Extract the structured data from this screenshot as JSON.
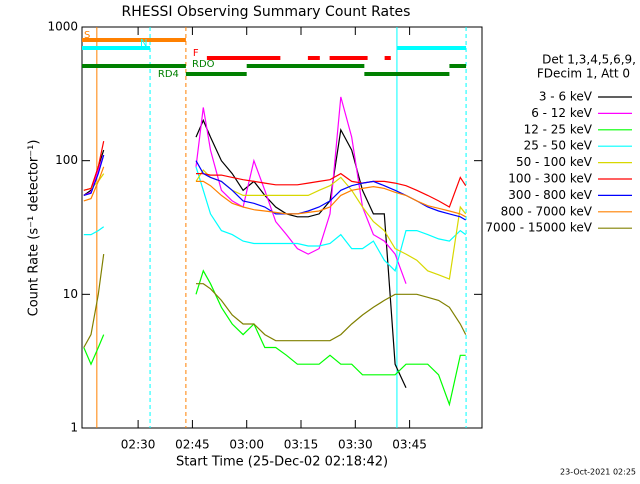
{
  "chart_data": {
    "type": "line",
    "title": "RHESSI Observing Summary Count Rates",
    "xlabel": "Start Time (25-Dec-02 02:18:42)",
    "ylabel": "Count Rate (s⁻¹ detector⁻¹)",
    "legend_header": [
      "Det 1,3,4,5,6,9,",
      "FDecim 1, Att 0"
    ],
    "footer": "23-Oct-2021 02:25",
    "ylog": true,
    "ylim": [
      1,
      1000
    ],
    "yticks": [
      1,
      10,
      100,
      1000
    ],
    "xlim": [
      14.5,
      125
    ],
    "xticks": [
      {
        "value": 30,
        "label": "02:30"
      },
      {
        "value": 45,
        "label": "02:45"
      },
      {
        "value": 60,
        "label": "03:00"
      },
      {
        "value": 75,
        "label": "03:15"
      },
      {
        "value": 90,
        "label": "03:30"
      },
      {
        "value": 105,
        "label": "03:45"
      }
    ],
    "x": [
      15,
      17,
      19,
      20.5,
      33,
      46,
      48,
      50,
      53,
      56,
      59,
      62,
      65,
      68,
      71,
      74,
      77,
      80,
      83,
      86,
      89,
      92,
      95,
      98,
      101,
      104,
      107,
      110,
      113,
      116,
      119,
      120.5
    ],
    "series": [
      {
        "name": "3 - 6 keV",
        "color": "#000000",
        "values": [
          55,
          60,
          90,
          120,
          null,
          150,
          200,
          150,
          100,
          80,
          60,
          70,
          55,
          45,
          40,
          38,
          38,
          40,
          50,
          170,
          120,
          60,
          40,
          40,
          3,
          2,
          null,
          null,
          null,
          null,
          null,
          null
        ]
      },
      {
        "name": "6 - 12 keV",
        "color": "#ff00ff",
        "values": [
          55,
          58,
          85,
          110,
          null,
          90,
          250,
          120,
          60,
          50,
          45,
          100,
          60,
          35,
          28,
          22,
          20,
          22,
          40,
          300,
          150,
          45,
          28,
          25,
          20,
          12,
          null,
          null,
          null,
          null,
          null,
          null
        ]
      },
      {
        "name": "12 - 25 keV",
        "color": "#00ff00",
        "values": [
          4,
          3,
          4,
          5,
          null,
          10,
          15,
          12,
          8,
          6,
          5,
          6,
          4,
          4,
          3.5,
          3,
          3,
          3,
          3.5,
          3,
          3,
          2.5,
          2.5,
          2.5,
          2.5,
          3,
          3,
          3,
          2.5,
          1.5,
          3.5,
          3.5
        ]
      },
      {
        "name": "25 - 50 keV",
        "color": "#00ffff",
        "values": [
          28,
          28,
          30,
          32,
          null,
          90,
          60,
          40,
          30,
          28,
          25,
          24,
          24,
          24,
          24,
          24,
          23,
          23,
          24,
          28,
          22,
          22,
          25,
          18,
          15,
          30,
          30,
          28,
          26,
          25,
          30,
          28
        ]
      },
      {
        "name": "50 - 100 keV",
        "color": "#d8d800",
        "values": [
          60,
          62,
          70,
          80,
          null,
          70,
          85,
          75,
          70,
          60,
          55,
          55,
          55,
          55,
          55,
          55,
          55,
          60,
          65,
          75,
          60,
          45,
          35,
          30,
          22,
          20,
          18,
          15,
          14,
          13,
          45,
          40
        ]
      },
      {
        "name": "100 - 300 keV",
        "color": "#ff0000",
        "values": [
          60,
          62,
          90,
          140,
          null,
          80,
          80,
          78,
          78,
          75,
          72,
          70,
          68,
          66,
          66,
          66,
          68,
          70,
          72,
          80,
          70,
          68,
          70,
          70,
          68,
          65,
          60,
          55,
          50,
          45,
          75,
          65
        ]
      },
      {
        "name": "300 - 800 keV",
        "color": "#0000ff",
        "values": [
          55,
          57,
          80,
          110,
          null,
          100,
          80,
          75,
          70,
          60,
          50,
          48,
          45,
          40,
          40,
          40,
          42,
          45,
          50,
          60,
          65,
          68,
          70,
          65,
          60,
          55,
          50,
          45,
          42,
          40,
          38,
          36
        ]
      },
      {
        "name": "800 - 7000 keV",
        "color": "#ff8000",
        "values": [
          50,
          52,
          70,
          90,
          null,
          70,
          70,
          65,
          55,
          48,
          45,
          43,
          42,
          41,
          40,
          40,
          41,
          42,
          45,
          55,
          60,
          62,
          64,
          62,
          58,
          55,
          50,
          46,
          44,
          42,
          40,
          38
        ]
      },
      {
        "name": "7000 - 15000 keV",
        "color": "#808000",
        "values": [
          4,
          5,
          10,
          20,
          null,
          12,
          12,
          11,
          9,
          7,
          6,
          6,
          5,
          4.5,
          4.5,
          4.5,
          4.5,
          4.5,
          4.5,
          5,
          6,
          7,
          8,
          9,
          10,
          10,
          10,
          9.5,
          9,
          8,
          6,
          5
        ]
      }
    ],
    "flags": [
      {
        "label": "S",
        "color": "#ff8000",
        "segments": [
          [
            14.5,
            43.2
          ]
        ]
      },
      {
        "label": "N",
        "color": "#00ffff",
        "segments": [
          [
            14.5,
            33.3
          ],
          [
            101.5,
            120.6
          ]
        ]
      },
      {
        "label": "F",
        "color": "#ff0000",
        "segments": [
          [
            49,
            69.3
          ],
          [
            76.9,
            80.2
          ],
          [
            82.9,
            93.4
          ],
          [
            98.1,
            99.8
          ]
        ]
      },
      {
        "label": "RDO",
        "color": "#008000",
        "segments": [
          [
            14.5,
            43.2
          ],
          [
            60,
            92.5
          ],
          [
            116,
            120.6
          ]
        ]
      },
      {
        "label": "RD4",
        "color": "#008000",
        "segments": [
          [
            43.2,
            60
          ],
          [
            92.5,
            116
          ]
        ]
      }
    ],
    "vlines": [
      {
        "x": 18.6,
        "color": "#ff8000",
        "dashed": false
      },
      {
        "x": 33.3,
        "color": "#00ffff",
        "dashed": true
      },
      {
        "x": 43.2,
        "color": "#ff8000",
        "dashed": true
      },
      {
        "x": 101.5,
        "color": "#00ffff",
        "dashed": false
      },
      {
        "x": 120.6,
        "color": "#00ffff",
        "dashed": true
      }
    ]
  }
}
